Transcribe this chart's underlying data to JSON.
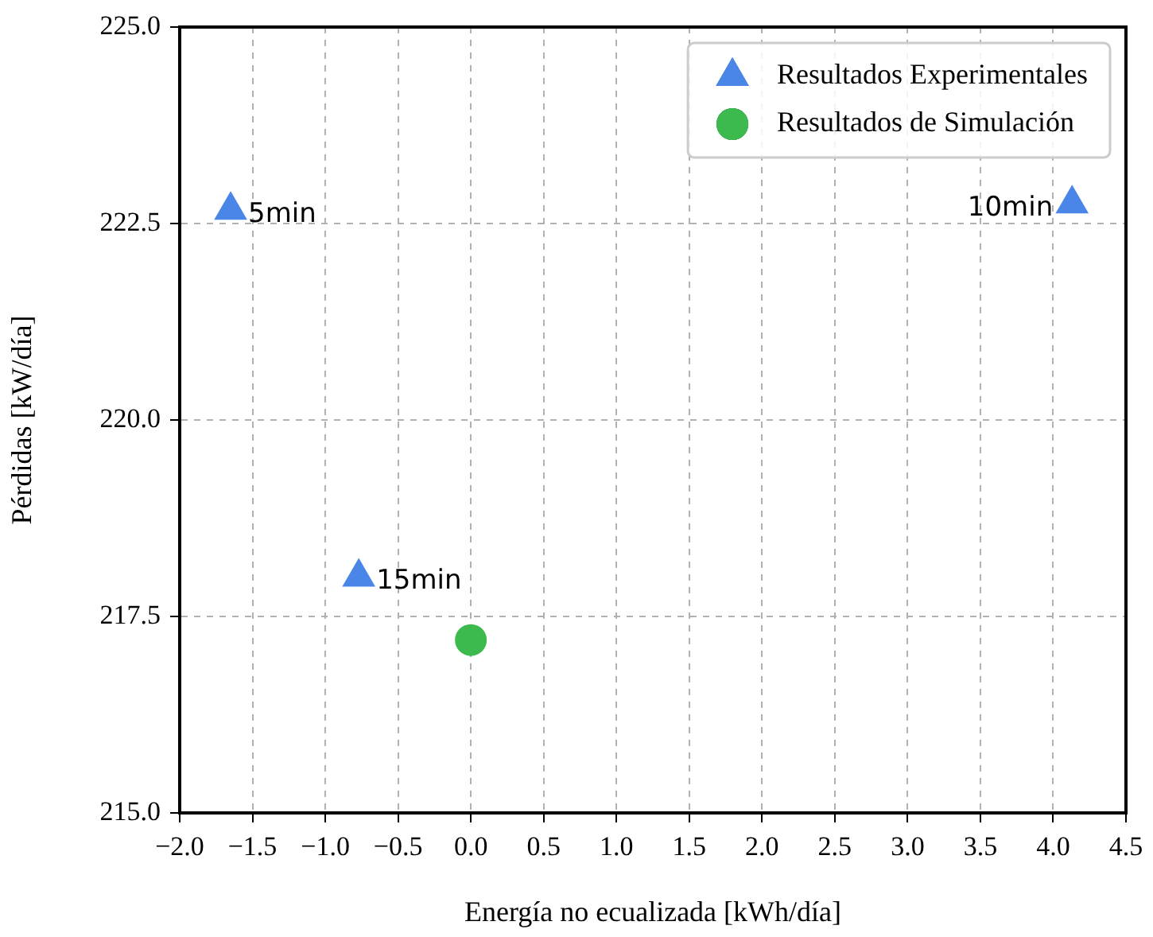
{
  "chart_data": {
    "type": "scatter",
    "xlabel": "Energía no ecualizada [kWh/día]",
    "ylabel": "Pérdidas [kW/día]",
    "series": [
      {
        "name": "Resultados Experimentales",
        "color": "#4a86e8",
        "marker": "triangle",
        "x": [
          -1.65,
          4.13,
          -0.77
        ],
        "values": [
          222.67,
          222.75,
          218.0
        ]
      },
      {
        "name": "Resultados de Simulación",
        "color": "#3dba4e",
        "marker": "circle",
        "x": [
          0.0
        ],
        "values": [
          217.2
        ]
      }
    ],
    "xlim": [
      -2.0,
      4.5
    ],
    "xticks": [
      {
        "value": -2.0,
        "label": "−2.0"
      },
      {
        "value": -1.5,
        "label": "−1.5"
      },
      {
        "value": -1.0,
        "label": "−1.0"
      },
      {
        "value": -0.5,
        "label": "−0.5"
      },
      {
        "value": 0,
        "label": "0.0"
      },
      {
        "value": 0.5,
        "label": "0.5"
      },
      {
        "value": 1,
        "label": "1.0"
      },
      {
        "value": 1.5,
        "label": "1.5"
      },
      {
        "value": 2,
        "label": "2.0"
      },
      {
        "value": 2.5,
        "label": "2.5"
      },
      {
        "value": 3,
        "label": "3.0"
      },
      {
        "value": 3.5,
        "label": "3.5"
      },
      {
        "value": 4,
        "label": "4.0"
      },
      {
        "value": 4.5,
        "label": "4.5"
      }
    ],
    "ylim": [
      215,
      225
    ],
    "yticks": [
      {
        "value": 215,
        "label": "215.0"
      },
      {
        "value": 217.5,
        "label": "217.5"
      },
      {
        "value": 220,
        "label": "220.0"
      },
      {
        "value": 222.5,
        "label": "222.5"
      },
      {
        "value": 225,
        "label": "225.0"
      }
    ],
    "grid": true,
    "legend": "top right",
    "annotations": [
      {
        "text": "5min",
        "x": -1.65,
        "y": 222.67
      },
      {
        "text": "10min",
        "x": 4.13,
        "y": 222.75
      },
      {
        "text": "15min",
        "x": -0.77,
        "y": 218.0
      }
    ]
  }
}
